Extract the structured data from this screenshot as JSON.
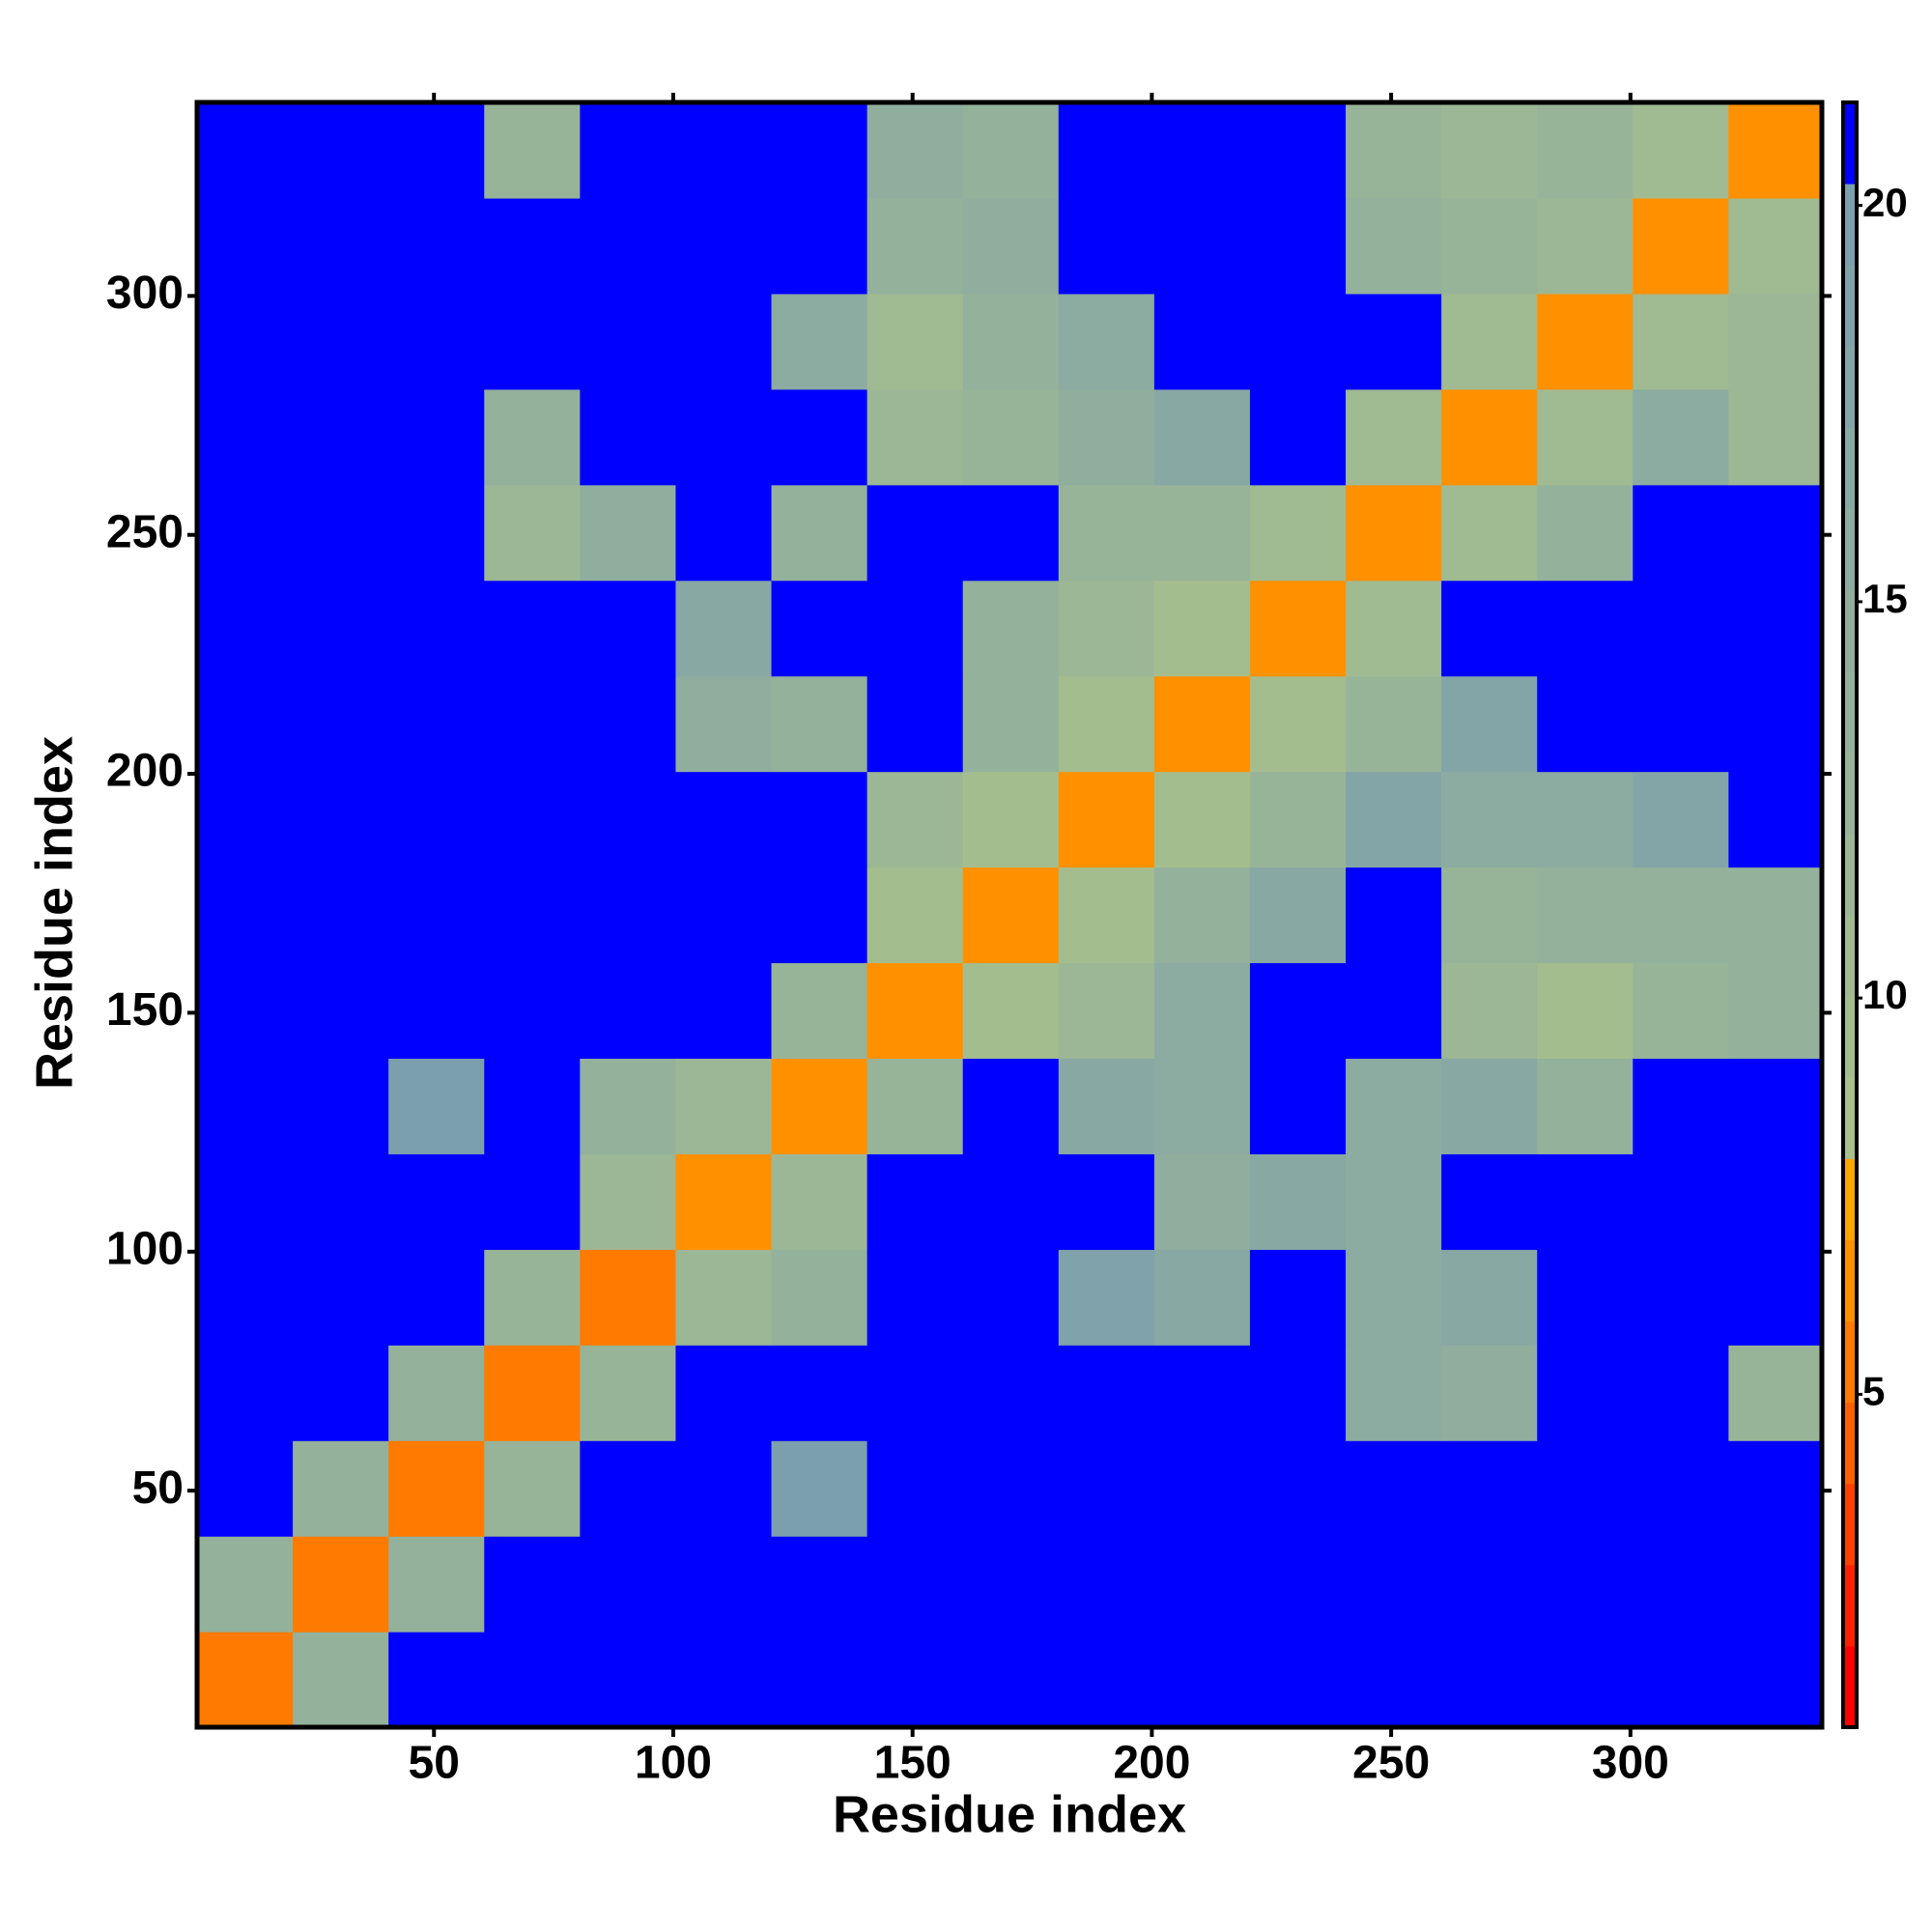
{
  "chart_data": {
    "type": "heatmap",
    "xlabel": "Residue index",
    "ylabel": "Residue index",
    "xbins": [
      0.5,
      20.5,
      40.5,
      60.5,
      80.5,
      100.5,
      120.5,
      140.5,
      160.5,
      180.5,
      200.5,
      220.5,
      240.5,
      260.5,
      280.5,
      300.5,
      320.5,
      340.5
    ],
    "ybins": [
      0.5,
      20.5,
      40.5,
      60.5,
      80.5,
      100.5,
      120.5,
      140.5,
      160.5,
      180.5,
      200.5,
      220.5,
      240.5,
      260.5,
      280.5,
      300.5,
      320.5,
      340.5
    ],
    "z": [
      [
        5,
        14,
        21,
        21,
        21,
        21,
        21,
        21,
        21,
        21,
        21,
        21,
        21,
        21,
        21,
        21,
        21
      ],
      [
        14,
        5,
        14,
        21,
        21,
        21,
        21,
        21,
        21,
        21,
        21,
        21,
        21,
        21,
        21,
        21,
        21
      ],
      [
        21,
        14,
        5,
        13,
        21,
        21,
        20,
        21,
        21,
        21,
        21,
        21,
        21,
        21,
        21,
        21,
        21
      ],
      [
        21,
        21,
        14,
        5,
        13,
        21,
        21,
        21,
        21,
        21,
        21,
        21,
        16,
        15,
        21,
        21,
        13
      ],
      [
        21,
        21,
        21,
        13,
        5,
        12,
        14,
        21,
        21,
        19,
        17,
        21,
        16,
        17,
        21,
        21,
        21
      ],
      [
        21,
        21,
        21,
        21,
        12,
        6,
        12,
        21,
        21,
        21,
        15,
        17,
        16,
        21,
        21,
        21,
        21
      ],
      [
        21,
        21,
        20,
        21,
        14,
        12,
        6,
        13,
        21,
        17,
        16,
        21,
        16,
        17,
        14,
        21,
        21
      ],
      [
        21,
        21,
        21,
        21,
        21,
        21,
        13,
        6,
        10,
        12,
        16,
        21,
        21,
        12,
        10,
        13,
        14
      ],
      [
        21,
        21,
        21,
        21,
        21,
        21,
        21,
        10,
        6,
        10,
        14,
        17,
        21,
        13,
        14,
        14,
        14
      ],
      [
        21,
        21,
        21,
        21,
        21,
        21,
        21,
        12,
        10,
        6,
        10,
        13,
        18,
        16,
        16,
        18,
        21
      ],
      [
        21,
        21,
        21,
        21,
        21,
        15,
        14,
        21,
        14,
        10,
        6,
        10,
        13,
        18,
        21,
        21,
        21
      ],
      [
        21,
        21,
        21,
        21,
        21,
        17,
        21,
        21,
        14,
        12,
        10,
        6,
        11,
        21,
        21,
        21,
        21
      ],
      [
        21,
        21,
        21,
        12,
        15,
        21,
        14,
        21,
        21,
        13,
        13,
        11,
        6,
        11,
        14,
        21,
        21
      ],
      [
        21,
        21,
        21,
        14,
        21,
        21,
        21,
        12,
        13,
        15,
        17,
        21,
        11,
        6,
        11,
        16,
        12
      ],
      [
        21,
        21,
        21,
        21,
        21,
        21,
        16,
        11,
        14,
        16,
        21,
        21,
        21,
        11,
        6,
        11,
        12
      ],
      [
        21,
        21,
        21,
        21,
        21,
        21,
        21,
        14,
        15,
        21,
        21,
        21,
        14,
        13,
        12,
        6,
        11
      ],
      [
        21,
        21,
        21,
        13,
        21,
        21,
        21,
        15,
        14,
        21,
        21,
        21,
        13,
        12,
        13,
        11,
        6
      ]
    ],
    "xlim": [
      0.5,
      340
    ],
    "ylim": [
      0.5,
      340.5
    ],
    "xticks": [
      50,
      100,
      150,
      200,
      250,
      300
    ],
    "yticks": [
      50,
      100,
      150,
      200,
      250,
      300
    ],
    "zlim": [
      0.8,
      21.3
    ],
    "zticks": [
      5,
      10,
      15,
      20
    ],
    "colors": [
      "#ff0000",
      "#ff2000",
      "#ff4000",
      "#ff6000",
      "#ff7a00",
      "#ff9000",
      "#ffa500",
      "#a8c08c",
      "#a4bd8f",
      "#a0ba92",
      "#9cb795",
      "#98b498",
      "#94b19b",
      "#90ae9e",
      "#8caba1",
      "#88a8a4",
      "#84a5a7",
      "#80a2aa",
      "#7c9fad",
      "#0000ff"
    ]
  }
}
